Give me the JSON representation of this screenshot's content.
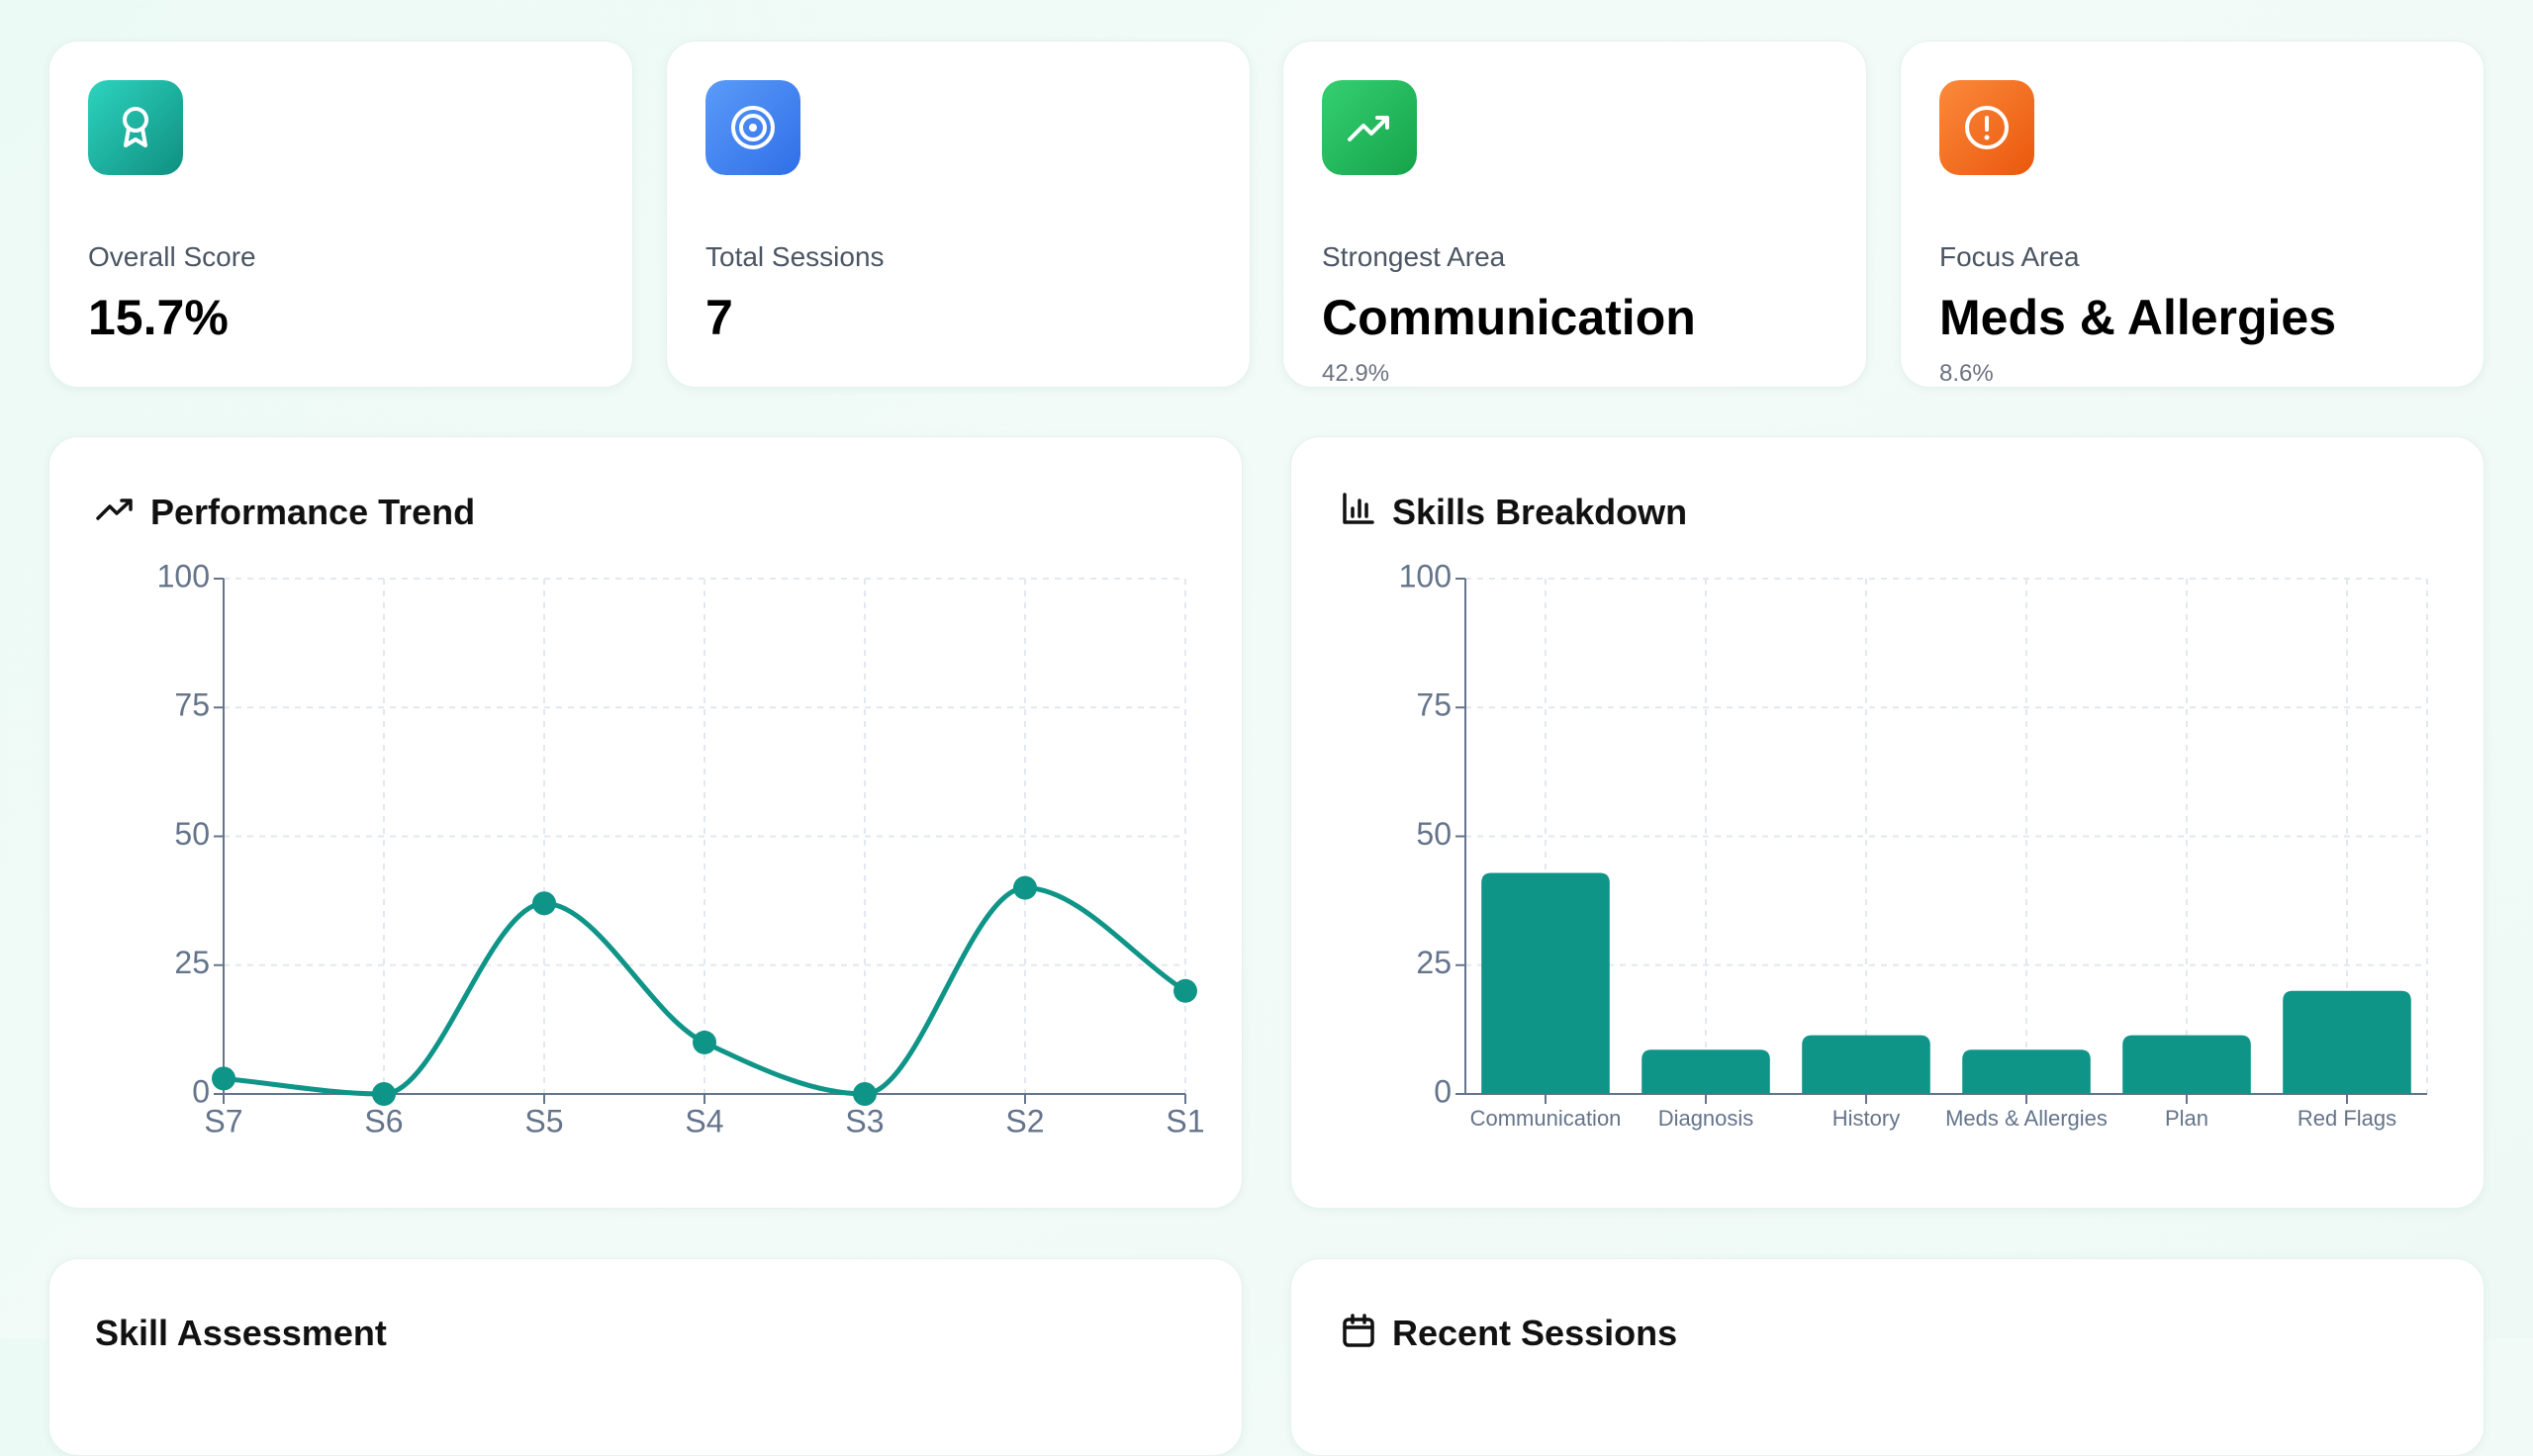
{
  "stats": [
    {
      "label": "Overall Score",
      "value": "15.7%"
    },
    {
      "label": "Total Sessions",
      "value": "7"
    },
    {
      "label": "Strongest Area",
      "value": "Communication",
      "detail": "42.9%"
    },
    {
      "label": "Focus Area",
      "value": "Meds & Allergies",
      "detail": "8.6%"
    }
  ],
  "chart_data": [
    {
      "type": "line",
      "title": "Performance Trend",
      "categories": [
        "S7",
        "S6",
        "S5",
        "S4",
        "S3",
        "S2",
        "S1"
      ],
      "values": [
        3,
        0,
        37,
        10,
        0,
        40,
        20
      ],
      "color": "#0f9488",
      "ylim": [
        0,
        100
      ],
      "yticks": [
        0,
        25,
        50,
        75,
        100
      ],
      "grid": true
    },
    {
      "type": "bar",
      "title": "Skills Breakdown",
      "categories": [
        "Communication",
        "Diagnosis",
        "History",
        "Meds & Allergies",
        "Plan",
        "Red Flags"
      ],
      "values": [
        42.9,
        8.6,
        11.4,
        8.6,
        11.4,
        20
      ],
      "color": "#0f9488",
      "ylim": [
        0,
        100
      ],
      "yticks": [
        0,
        25,
        50,
        75,
        100
      ],
      "grid": true
    }
  ],
  "panels": [
    "Skill Assessment",
    "Recent Sessions"
  ]
}
